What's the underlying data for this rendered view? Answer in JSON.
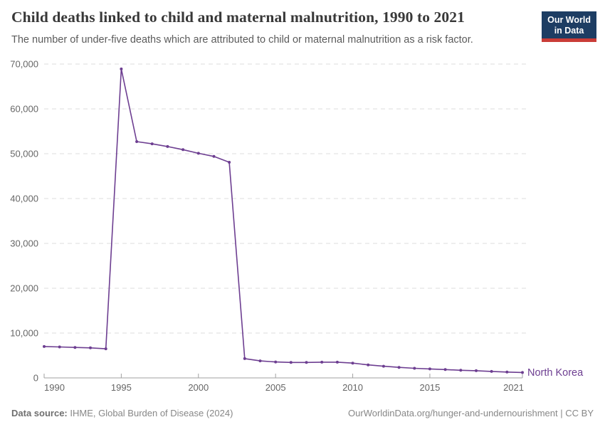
{
  "header": {
    "logo": {
      "line1": "Our World",
      "line2": "in Data"
    }
  },
  "chart_data": {
    "type": "line",
    "title": "Child deaths linked to child and maternal malnutrition, 1990 to 2021",
    "subtitle": "The number of under-five deaths which are attributed to child or maternal malnutrition as a risk factor.",
    "xlabel": "",
    "ylabel": "",
    "xlim": [
      1990,
      2021
    ],
    "ylim": [
      0,
      70000
    ],
    "grid": "horizontal-dashed",
    "legend_position": "end-of-line-label",
    "x_ticks": [
      1990,
      1995,
      2000,
      2005,
      2010,
      2015,
      2021
    ],
    "y_ticks": [
      0,
      10000,
      20000,
      30000,
      40000,
      50000,
      60000,
      70000
    ],
    "y_tick_labels": [
      "0",
      "10,000",
      "20,000",
      "30,000",
      "40,000",
      "50,000",
      "60,000",
      "70,000"
    ],
    "series": [
      {
        "name": "North Korea",
        "color": "#6d3e91",
        "years": [
          1990,
          1991,
          1992,
          1993,
          1994,
          1995,
          1996,
          1997,
          1998,
          1999,
          2000,
          2001,
          2002,
          2003,
          2004,
          2005,
          2006,
          2007,
          2008,
          2009,
          2010,
          2011,
          2012,
          2013,
          2014,
          2015,
          2016,
          2017,
          2018,
          2019,
          2020,
          2021
        ],
        "values": [
          7000,
          6900,
          6800,
          6700,
          6500,
          68900,
          52700,
          52200,
          51600,
          50900,
          50100,
          49400,
          48100,
          4300,
          3800,
          3550,
          3450,
          3450,
          3500,
          3500,
          3300,
          2900,
          2600,
          2350,
          2150,
          2000,
          1850,
          1700,
          1600,
          1450,
          1300,
          1200
        ]
      }
    ],
    "colors": {
      "line": "#6d3e91",
      "grid": "#dcdcdc",
      "axis": "#a1a1a1",
      "tick_label": "#666666",
      "title": "#383838",
      "subtitle": "#5b5b5b"
    }
  },
  "footer": {
    "source_label": "Data source:",
    "source_value": "IHME, Global Burden of Disease (2024)",
    "url": "OurWorldinData.org/hunger-and-undernourishment",
    "divider": "|",
    "license": "CC BY"
  }
}
